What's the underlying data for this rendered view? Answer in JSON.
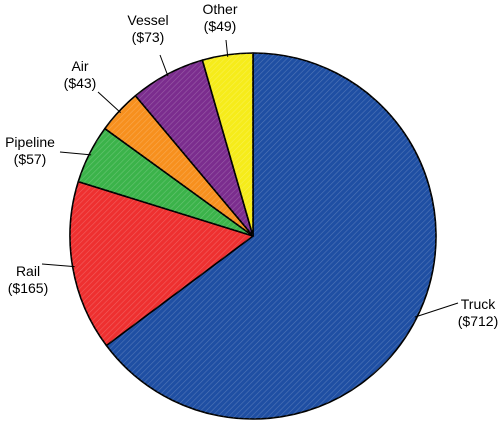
{
  "chart_data": {
    "type": "pie",
    "title": "",
    "start": "12 o'clock, clockwise",
    "legend": "none (direct labels with leader lines)",
    "slices": [
      {
        "name": "Truck",
        "label": "Truck",
        "value_label": "($712)",
        "value": 712,
        "color": "#1f4fa3"
      },
      {
        "name": "Rail",
        "label": "Rail",
        "value_label": "($165)",
        "value": 165,
        "color": "#ee3030"
      },
      {
        "name": "Pipeline",
        "label": "Pipeline",
        "value_label": "($57)",
        "value": 57,
        "color": "#3bb34a"
      },
      {
        "name": "Air",
        "label": "Air",
        "value_label": "($43)",
        "value": 43,
        "color": "#f7901e"
      },
      {
        "name": "Vessel",
        "label": "Vessel",
        "value_label": "($73)",
        "value": 73,
        "color": "#7b2d8e"
      },
      {
        "name": "Other",
        "label": "Other",
        "value_label": "($49)",
        "value": 49,
        "color": "#f6ec1a"
      }
    ]
  }
}
